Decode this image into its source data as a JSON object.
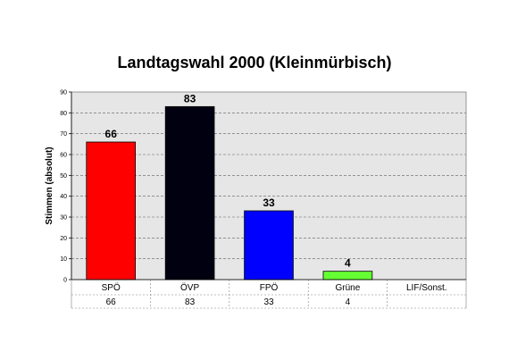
{
  "chart_data": {
    "type": "bar",
    "title": "Landtagswahl 2000 (Kleinmürbisch)",
    "xlabel": "",
    "ylabel": "Stimmen (absolut)",
    "ylim": [
      0,
      90
    ],
    "yticks": [
      0,
      10,
      20,
      30,
      40,
      50,
      60,
      70,
      80,
      90
    ],
    "grid": "dashed horizontal",
    "categories": [
      "SPÖ",
      "ÖVP",
      "FPÖ",
      "Grüne",
      "LIF/Sonst."
    ],
    "values": [
      66,
      83,
      33,
      4,
      null
    ],
    "value_labels": [
      "66",
      "83",
      "33",
      "4",
      ""
    ],
    "table_row": [
      "66",
      "83",
      "33",
      "4",
      ""
    ],
    "colors": [
      "#ff0000",
      "#000010",
      "#0000ff",
      "#66ff33",
      "#cccccc"
    ],
    "plot_background": "#e6e6e6"
  }
}
